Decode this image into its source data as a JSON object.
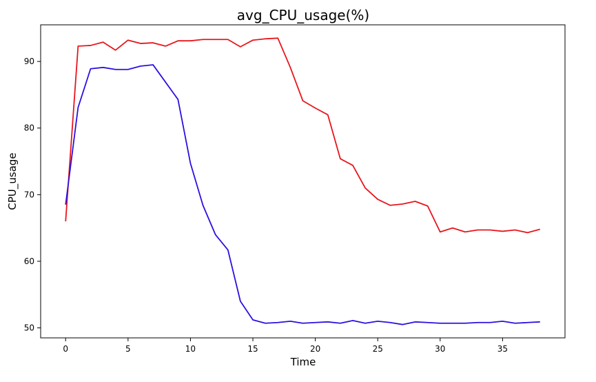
{
  "chart_data": {
    "type": "line",
    "title": "avg_CPU_usage(%)",
    "xlabel": "Time",
    "ylabel": "CPU_usage",
    "xlim": [
      -2,
      40
    ],
    "ylim": [
      48.5,
      95.5
    ],
    "xticks": [
      0,
      5,
      10,
      15,
      20,
      25,
      30,
      35
    ],
    "yticks": [
      50,
      60,
      70,
      80,
      90
    ],
    "grid": false,
    "x": [
      0,
      1,
      2,
      3,
      4,
      5,
      6,
      7,
      8,
      9,
      10,
      11,
      12,
      13,
      14,
      15,
      16,
      17,
      18,
      19,
      20,
      21,
      22,
      23,
      24,
      25,
      26,
      27,
      28,
      29,
      30,
      31,
      32,
      33,
      34,
      35,
      36,
      37,
      38
    ],
    "series": [
      {
        "color": "#e8141a",
        "values": [
          66.0,
          92.3,
          92.4,
          92.9,
          91.7,
          93.2,
          92.7,
          92.8,
          92.3,
          93.1,
          93.1,
          93.3,
          93.3,
          93.3,
          92.2,
          93.2,
          93.4,
          93.5,
          89.1,
          84.1,
          83.0,
          82.0,
          75.4,
          74.4,
          71.0,
          69.3,
          68.4,
          68.6,
          69.0,
          68.3,
          64.4,
          65.0,
          64.4,
          64.7,
          64.7,
          64.5,
          64.7,
          64.3,
          64.8
        ]
      },
      {
        "color": "#2a0fe0",
        "values": [
          68.5,
          83.1,
          88.9,
          89.1,
          88.8,
          88.8,
          89.3,
          89.5,
          86.9,
          84.3,
          74.7,
          68.4,
          64.0,
          61.7,
          54.0,
          51.2,
          50.7,
          50.8,
          51.0,
          50.7,
          50.8,
          50.9,
          50.7,
          51.1,
          50.7,
          51.0,
          50.8,
          50.5,
          50.9,
          50.8,
          50.7,
          50.7,
          50.7,
          50.8,
          50.8,
          51.0,
          50.7,
          50.8,
          50.9
        ]
      }
    ]
  }
}
